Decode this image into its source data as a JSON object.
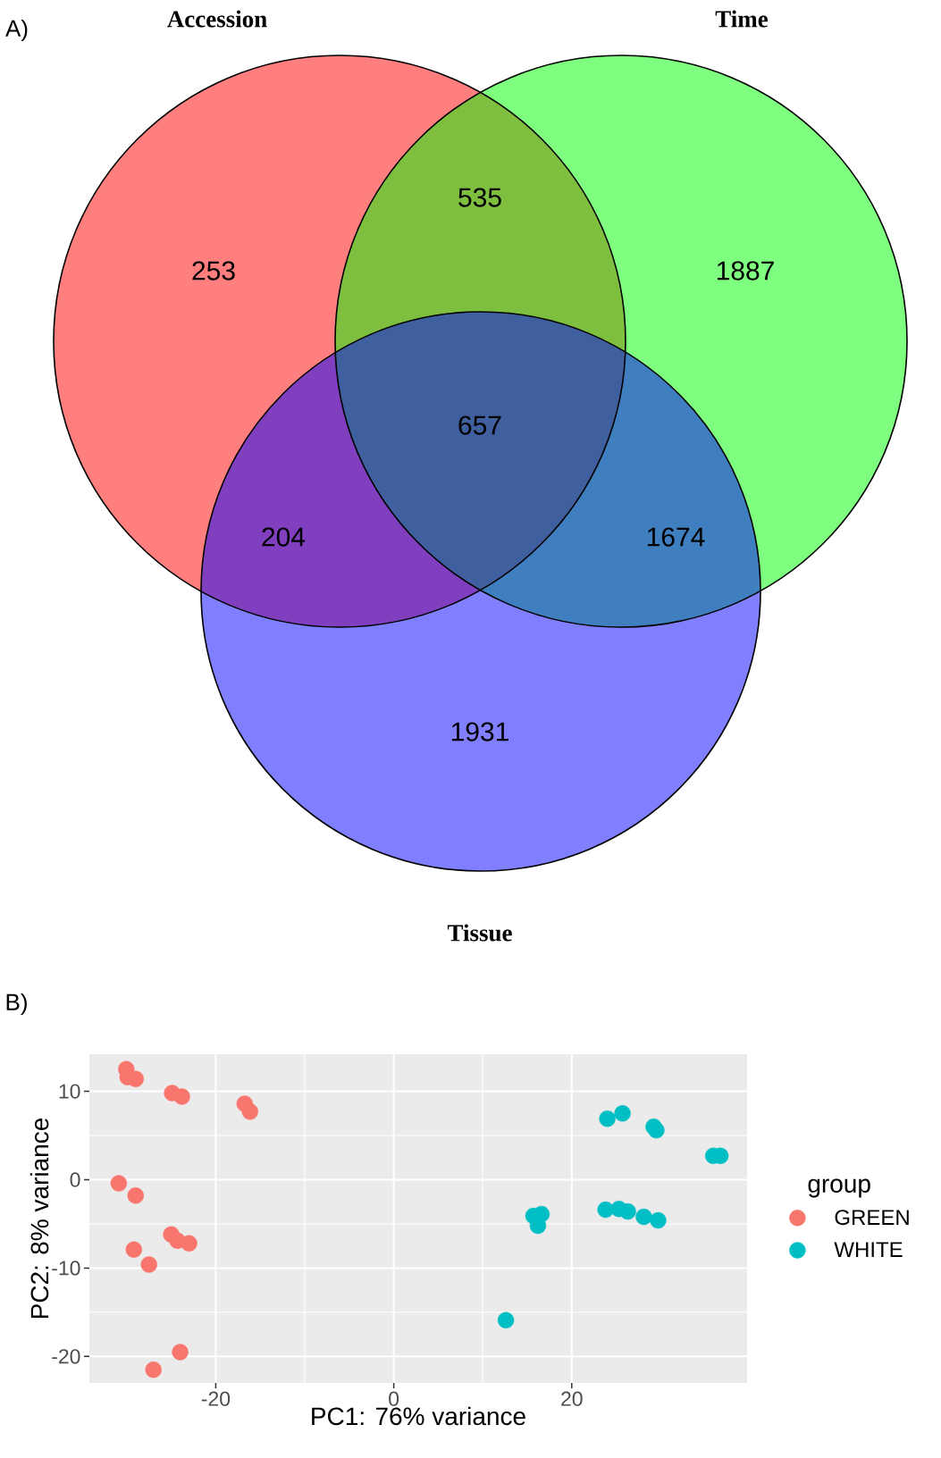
{
  "chart_data": [
    {
      "type": "other",
      "annotations": [
        "A)",
        "253",
        "535",
        "1887",
        "204",
        "657",
        "1674",
        "1931"
      ],
      "categories": [
        "Accession",
        "Time",
        "Tissue"
      ],
      "colors": [
        "#ff0000",
        "#00ff00",
        "#0000ff"
      ]
    },
    {
      "type": "scatter",
      "annotations": [
        "B)"
      ],
      "xlabel": "PC1: 76% variance",
      "ylabel": "PC2: 8% variance",
      "legend_title": "group",
      "xlim": [
        -34.2,
        39.7
      ],
      "ylim": [
        -23,
        14.2
      ],
      "xticks": [
        -20,
        0,
        20
      ],
      "yticks": [
        -20,
        -10,
        0,
        10
      ],
      "grid": true,
      "legend": "right",
      "marker": "circle",
      "series": [
        {
          "name": "GREEN",
          "color": "#f8766d",
          "x": [
            -30.05,
            -29.9,
            -29.0,
            -24.9,
            -23.8,
            -16.75,
            -16.15,
            -30.9,
            -29.0,
            -25.0,
            -24.3,
            -23.0,
            -29.2,
            -27.5,
            -24.0,
            -27.0
          ],
          "values": [
            12.5,
            11.6,
            11.4,
            9.8,
            9.4,
            8.6,
            7.7,
            -0.4,
            -1.8,
            -6.2,
            -6.9,
            -7.2,
            -7.9,
            -9.6,
            -19.5,
            -21.5
          ]
        },
        {
          "name": "WHITE",
          "color": "#00bfc4",
          "x": [
            24.0,
            25.7,
            29.2,
            29.5,
            35.9,
            36.7,
            15.7,
            16.6,
            16.2,
            23.8,
            25.3,
            26.3,
            28.1,
            29.7,
            12.6
          ],
          "values": [
            6.9,
            7.5,
            6.0,
            5.6,
            2.7,
            2.7,
            -4.1,
            -3.9,
            -5.2,
            -3.4,
            -3.3,
            -3.6,
            -4.2,
            -4.6,
            -15.9
          ]
        }
      ]
    }
  ]
}
